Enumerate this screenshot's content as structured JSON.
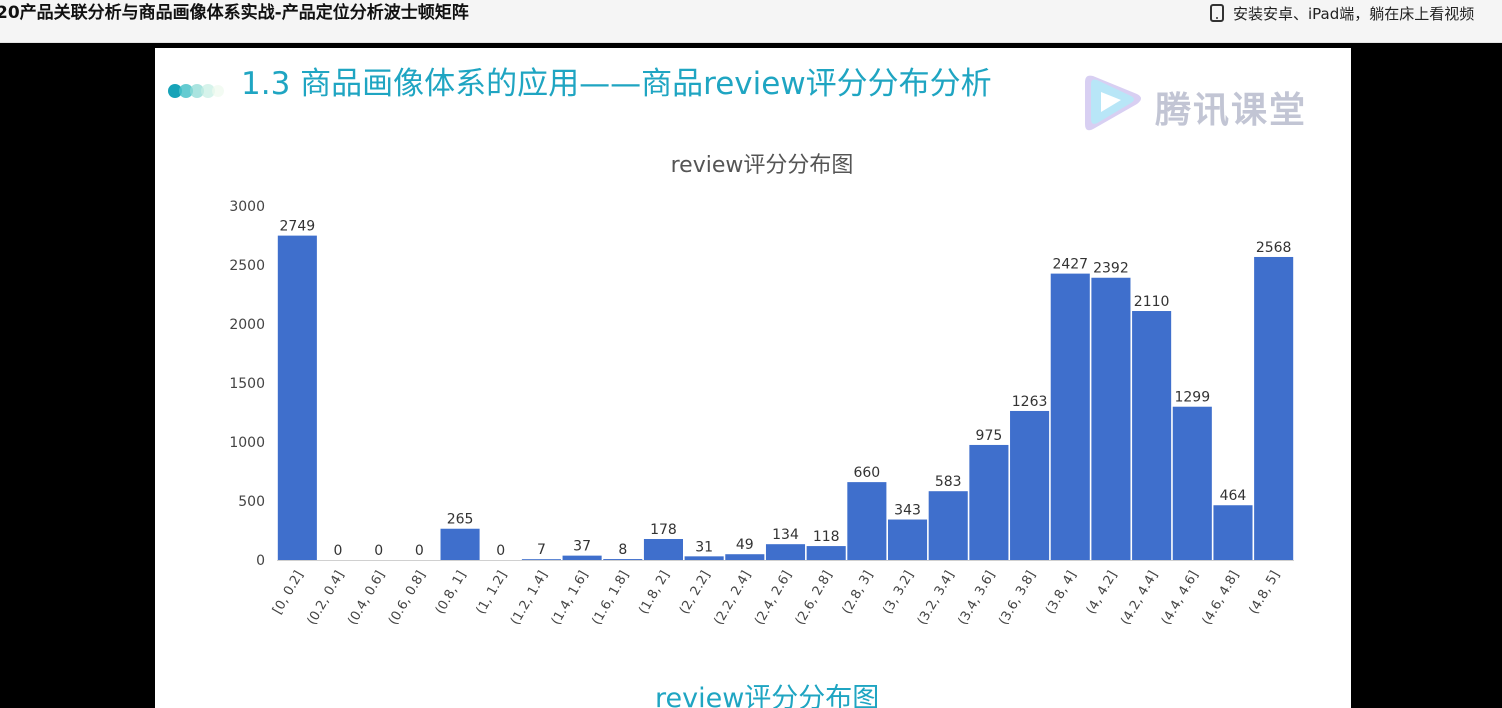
{
  "header": {
    "title": "20产品关联分析与商品画像体系实战-产品定位分析波士顿矩阵",
    "app_promo": "安装安卓、iPad端，躺在床上看视频",
    "app_icon": "tablet-icon"
  },
  "slide": {
    "heading": "1.3 商品画像体系的应用——商品review评分分布分析",
    "watermark": "腾讯课堂",
    "bottom_caption": "review评分分布图"
  },
  "chart_data": {
    "type": "bar",
    "title": "review评分分布图",
    "xlabel": "",
    "ylabel": "",
    "ylim": [
      0,
      3000
    ],
    "yticks": [
      0,
      500,
      1000,
      1500,
      2000,
      2500,
      3000
    ],
    "categories": [
      "[0, 0.2]",
      "(0.2, 0.4]",
      "(0.4, 0.6]",
      "(0.6, 0.8]",
      "(0.8, 1]",
      "(1, 1.2]",
      "(1.2, 1.4]",
      "(1.4, 1.6]",
      "(1.6, 1.8]",
      "(1.8, 2]",
      "(2, 2.2]",
      "(2.2, 2.4]",
      "(2.4, 2.6]",
      "(2.6, 2.8]",
      "(2.8, 3]",
      "(3, 3.2]",
      "(3.2, 3.4]",
      "(3.4, 3.6]",
      "(3.6, 3.8]",
      "(3.8, 4]",
      "(4, 4.2]",
      "(4.2, 4.4]",
      "(4.4, 4.6]",
      "(4.6, 4.8]",
      "(4.8, 5]"
    ],
    "values": [
      2749,
      0,
      0,
      0,
      265,
      0,
      7,
      37,
      8,
      178,
      31,
      49,
      134,
      118,
      660,
      343,
      583,
      975,
      1263,
      2427,
      2392,
      2110,
      1299,
      464,
      2568
    ],
    "bar_color": "#3f6fcc",
    "grid": false,
    "legend": "none"
  }
}
